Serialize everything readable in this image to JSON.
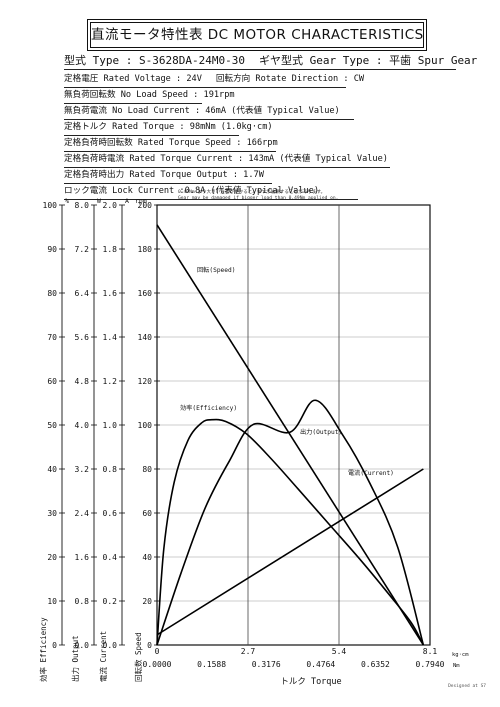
{
  "title": "直流モータ特性表 DC MOTOR CHARACTERISTICS",
  "specs": {
    "model_label": "型式 Type",
    "model_value": "S-3628DA-24M0-30",
    "gear_label": "ギヤ型式 Gear Type",
    "gear_value_ja": "平歯",
    "gear_value_en": "Spur Gear",
    "rated_voltage_label": "定格電圧 Rated Voltage",
    "rated_voltage_value": "24V",
    "rotation_label": "回転方向 Rotate Direction",
    "rotation_value": "CW",
    "no_load_speed_label": "無負荷回転数 No Load Speed",
    "no_load_speed_value": "191rpm",
    "no_load_current_label": "無負荷電流 No Load Current",
    "no_load_current_value": "46mA (代表値 Typical Value)",
    "rated_torque_label": "定格トルク Rated Torque",
    "rated_torque_value": "98mNm (1.0kg·cm)",
    "rated_torque_speed_label": "定格負荷時回転数 Rated Torque Speed",
    "rated_torque_speed_value": "166rpm",
    "rated_torque_current_label": "定格負荷時電流 Rated Torque Current",
    "rated_torque_current_value": "143mA (代表値 Typical Value)",
    "rated_torque_output_label": "定格負荷時出力 Rated Torque Output",
    "rated_torque_output_value": "1.7W",
    "lock_current_label": "ロック電流 Lock Current",
    "lock_current_value": "0.8A (代表値 Typical Value)"
  },
  "warning_ja": "0.49Nm より大きい負荷がかかると、ギヤが破損することがあります。",
  "warning_en": "Gear may be damaged if bigger load than 0.49Nm applied on.",
  "footer": "Designed at S7",
  "chart_data": {
    "type": "line",
    "xlabel": "トルク Torque",
    "x_unit_top": "kg·cm",
    "x_unit_bottom": "Nm",
    "x_range_kgcm": [
      0,
      8.1
    ],
    "x_range_nm": [
      0,
      0.794
    ],
    "x_ticks_kgcm": [
      "0",
      "2.7",
      "5.4",
      "8.1"
    ],
    "x_ticks_nm": [
      "0.0000",
      "0.1588",
      "0.3176",
      "0.4764",
      "0.6352",
      "0.7940"
    ],
    "y_axes": [
      {
        "name": "効率 Efficiency",
        "unit": "%",
        "ticks": [
          "0",
          "10",
          "20",
          "30",
          "40",
          "50",
          "60",
          "70",
          "80",
          "90",
          "100"
        ]
      },
      {
        "name": "出力 Output",
        "unit": "W",
        "ticks": [
          "0.0",
          "0.8",
          "1.6",
          "2.4",
          "3.2",
          "4.0",
          "4.8",
          "5.6",
          "6.4",
          "7.2",
          "8.0"
        ]
      },
      {
        "name": "電流 Current",
        "unit": "A",
        "ticks": [
          "0.0",
          "0.2",
          "0.4",
          "0.6",
          "0.8",
          "1.0",
          "1.2",
          "1.4",
          "1.6",
          "1.8",
          "2.0"
        ]
      },
      {
        "name": "回転数 Speed",
        "unit": "rpm",
        "ticks": [
          "0",
          "20",
          "40",
          "60",
          "80",
          "100",
          "120",
          "140",
          "160",
          "180",
          "200"
        ]
      }
    ],
    "series": [
      {
        "name": "回転(Speed)",
        "axis": "rpm",
        "x_nm": [
          0,
          0.7747
        ],
        "y": [
          191,
          0
        ]
      },
      {
        "name": "電流(Current)",
        "axis": "A",
        "x_nm": [
          0,
          0.7747
        ],
        "y": [
          0.046,
          0.8
        ]
      },
      {
        "name": "出力(Output)",
        "axis": "W",
        "x_nm": [
          0,
          0.07,
          0.14,
          0.21,
          0.28,
          0.3874,
          0.46,
          0.54,
          0.62,
          0.7,
          0.7747
        ],
        "y": [
          0,
          1.31,
          2.49,
          3.34,
          4.01,
          3.87,
          4.45,
          3.82,
          2.93,
          1.78,
          0
        ]
      },
      {
        "name": "効率(Efficiency)",
        "axis": "%",
        "x_nm": [
          0,
          0.02,
          0.05,
          0.09,
          0.13,
          0.16,
          0.2,
          0.26,
          0.33,
          0.41,
          0.5,
          0.59,
          0.68,
          0.74,
          0.7747
        ],
        "y": [
          0,
          22,
          37,
          46.5,
          50.5,
          51.2,
          50.8,
          48,
          42.5,
          35.5,
          27.5,
          19.5,
          11,
          5,
          0
        ]
      }
    ]
  }
}
